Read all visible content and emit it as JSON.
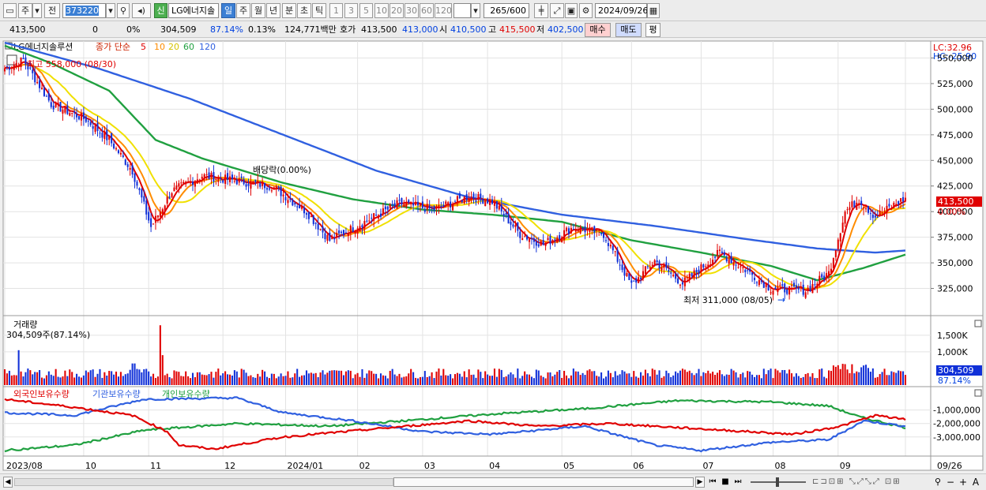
{
  "toolbar": {
    "type_selector": "주",
    "prev_label": "전",
    "code": "373220",
    "stock_badge": "신",
    "stock_name": "LG에너지솔",
    "periods": [
      "일",
      "주",
      "월",
      "년",
      "분",
      "초",
      "틱"
    ],
    "active_period": "일",
    "intervals": [
      "1",
      "3",
      "5",
      "10",
      "20",
      "30",
      "60",
      "120"
    ],
    "count": "265",
    "count_total": "/600",
    "date": "2024/09/26"
  },
  "infobar": {
    "price": "413,500",
    "change": "0",
    "change_pct": "0%",
    "volume": "304,509",
    "volume_ratio": "87.14%",
    "turnover": "0.13%",
    "amount": "124,771백만",
    "ask_label": "호가",
    "ask_value": "413,500",
    "bid_value": "413,000",
    "open_label": "시",
    "open_value": "410,500",
    "high_label": "고",
    "high_value": "415,500",
    "low_label": "저",
    "low_value": "402,500",
    "buy_label": "매수",
    "sell_label": "매도",
    "eval_label": "평"
  },
  "colors": {
    "up": "#e00000",
    "down": "#1030d8",
    "ma5": "#e00000",
    "ma10": "#ff8c00",
    "ma20": "#f0e000",
    "ma60": "#20a040",
    "ma120": "#3060e0",
    "foreign": "#e00000",
    "institution": "#3060e0",
    "individual": "#20a040"
  },
  "chart_data": [
    {
      "type": "candlestick",
      "title": "LG에너지솔루션",
      "legend_prefix": "종가 단순",
      "ma_periods": [
        "5",
        "10",
        "20",
        "60",
        "120"
      ],
      "lc_label": "LC:32.96",
      "hc_label": "HC:-25.90",
      "ylim": [
        300000,
        565000
      ],
      "y_ticks": [
        550000,
        525000,
        500000,
        475000,
        450000,
        425000,
        400000,
        375000,
        350000,
        325000
      ],
      "y_tick_labels": [
        "550,000",
        "525,000",
        "500,000",
        "475,000",
        "450,000",
        "425,000",
        "400,000",
        "375,000",
        "350,000",
        "325,000"
      ],
      "current_price_label": "413,500",
      "current_change_label": "0.00%",
      "current_price": 413500,
      "high_annotation": "최고 558,000 (08/30)",
      "low_annotation": "최저 311,000 (08/05)",
      "dividend_annotation": "배당락(0.00%)",
      "x_labels": [
        "2023/08",
        "10",
        "11",
        "12",
        "2024/01",
        "02",
        "03",
        "04",
        "05",
        "06",
        "07",
        "08",
        "09",
        "09/26"
      ],
      "close_anchors": [
        [
          0,
          540000
        ],
        [
          8,
          548000
        ],
        [
          20,
          505000
        ],
        [
          35,
          490000
        ],
        [
          45,
          470000
        ],
        [
          55,
          440000
        ],
        [
          63,
          385000
        ],
        [
          72,
          420000
        ],
        [
          85,
          435000
        ],
        [
          100,
          430000
        ],
        [
          115,
          425000
        ],
        [
          130,
          400000
        ],
        [
          140,
          372000
        ],
        [
          155,
          390000
        ],
        [
          170,
          408000
        ],
        [
          185,
          402000
        ],
        [
          200,
          415000
        ],
        [
          210,
          410000
        ],
        [
          222,
          378000
        ],
        [
          232,
          368000
        ],
        [
          245,
          385000
        ],
        [
          258,
          378000
        ],
        [
          270,
          328000
        ],
        [
          280,
          352000
        ],
        [
          292,
          330000
        ],
        [
          308,
          360000
        ],
        [
          318,
          345000
        ],
        [
          330,
          325000
        ],
        [
          345,
          323000
        ],
        [
          355,
          340000
        ],
        [
          362,
          400000
        ],
        [
          368,
          412000
        ],
        [
          375,
          395000
        ],
        [
          382,
          405000
        ],
        [
          388,
          413500
        ]
      ],
      "ma60_anchors": [
        [
          0,
          562000
        ],
        [
          20,
          545000
        ],
        [
          45,
          518000
        ],
        [
          65,
          470000
        ],
        [
          85,
          452000
        ],
        [
          120,
          428000
        ],
        [
          150,
          412000
        ],
        [
          180,
          402000
        ],
        [
          210,
          397000
        ],
        [
          240,
          390000
        ],
        [
          270,
          372000
        ],
        [
          300,
          360000
        ],
        [
          330,
          347000
        ],
        [
          350,
          333000
        ],
        [
          370,
          345000
        ],
        [
          388,
          358000
        ]
      ],
      "ma120_anchors": [
        [
          0,
          565000
        ],
        [
          40,
          540000
        ],
        [
          80,
          510000
        ],
        [
          120,
          475000
        ],
        [
          160,
          440000
        ],
        [
          200,
          414000
        ],
        [
          240,
          397000
        ],
        [
          280,
          386000
        ],
        [
          320,
          373000
        ],
        [
          350,
          364000
        ],
        [
          375,
          360000
        ],
        [
          388,
          362000
        ]
      ]
    },
    {
      "type": "bar",
      "title": "거래량",
      "value_label": "304,509주(87.14%)",
      "ylim": [
        0,
        1900000
      ],
      "y_ticks": [
        1500000,
        1000000
      ],
      "y_tick_labels": [
        "1,500K",
        "1,000K"
      ],
      "current_label": "304,509",
      "current_pct_label": "87.14%",
      "current_value": 304509
    },
    {
      "type": "line",
      "legend": [
        "외국인보유수량",
        "기관보유수량",
        "개인보유수량"
      ],
      "ylim": [
        -4300000,
        150000
      ],
      "y_ticks": [
        -1000000,
        -2000000,
        -3000000
      ],
      "y_tick_labels": [
        "-1,000,000",
        "-2,000,000",
        "-3,000,000"
      ],
      "foreign_anchors": [
        [
          0,
          -200000
        ],
        [
          30,
          -800000
        ],
        [
          55,
          -1400000
        ],
        [
          70,
          -2600000
        ],
        [
          75,
          -3600000
        ],
        [
          90,
          -3900000
        ],
        [
          120,
          -3000000
        ],
        [
          160,
          -2400000
        ],
        [
          200,
          -1800000
        ],
        [
          230,
          -2200000
        ],
        [
          260,
          -2000000
        ],
        [
          300,
          -2400000
        ],
        [
          340,
          -2800000
        ],
        [
          360,
          -2200000
        ],
        [
          375,
          -1400000
        ],
        [
          388,
          -1700000
        ]
      ],
      "institution_anchors": [
        [
          0,
          -1200000
        ],
        [
          30,
          -1400000
        ],
        [
          60,
          -200000
        ],
        [
          100,
          -100000
        ],
        [
          120,
          -1200000
        ],
        [
          150,
          -1800000
        ],
        [
          180,
          -2600000
        ],
        [
          210,
          -2800000
        ],
        [
          250,
          -2200000
        ],
        [
          280,
          -3600000
        ],
        [
          300,
          -4000000
        ],
        [
          330,
          -3400000
        ],
        [
          355,
          -3200000
        ],
        [
          370,
          -1800000
        ],
        [
          388,
          -2200000
        ]
      ],
      "individual_anchors": [
        [
          0,
          -4000000
        ],
        [
          30,
          -3600000
        ],
        [
          60,
          -2500000
        ],
        [
          100,
          -2000000
        ],
        [
          140,
          -2200000
        ],
        [
          180,
          -1700000
        ],
        [
          210,
          -1300000
        ],
        [
          250,
          -900000
        ],
        [
          290,
          -300000
        ],
        [
          330,
          -400000
        ],
        [
          355,
          -700000
        ],
        [
          368,
          -1500000
        ],
        [
          388,
          -2300000
        ]
      ]
    }
  ],
  "bottombar": {
    "zoom_out": "−",
    "zoom_in": "+",
    "font_size": "A"
  }
}
